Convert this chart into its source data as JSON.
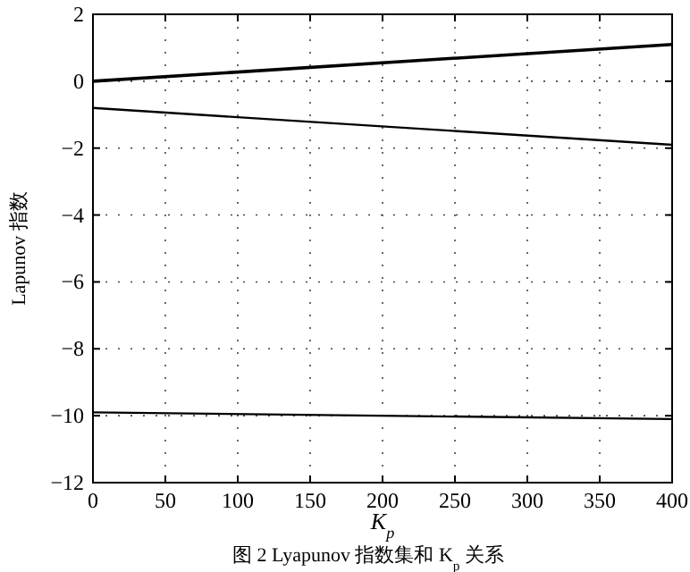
{
  "chart_data": {
    "type": "line",
    "title": "图 2  Lyapunov 指数集和 K$_{p}$ 关系",
    "xlabel": "K$_{p}$",
    "ylabel": "Lapunov 指数",
    "x": [
      0,
      400
    ],
    "series": [
      {
        "color": "#000000",
        "values": [
          0.0,
          1.1
        ]
      },
      {
        "color": "#000000",
        "values": [
          -0.8,
          -1.9
        ]
      },
      {
        "color": "#000000",
        "values": [
          -9.9,
          -10.1
        ]
      }
    ],
    "xlim": [
      0,
      400
    ],
    "ylim": [
      -12,
      2
    ],
    "xticks": [
      0,
      50,
      100,
      150,
      200,
      250,
      300,
      350,
      400
    ],
    "yticks": [
      -12,
      -10,
      -8,
      -6,
      -4,
      -2,
      0,
      2
    ],
    "grid": true,
    "marker": "none",
    "line_style": "solid"
  }
}
